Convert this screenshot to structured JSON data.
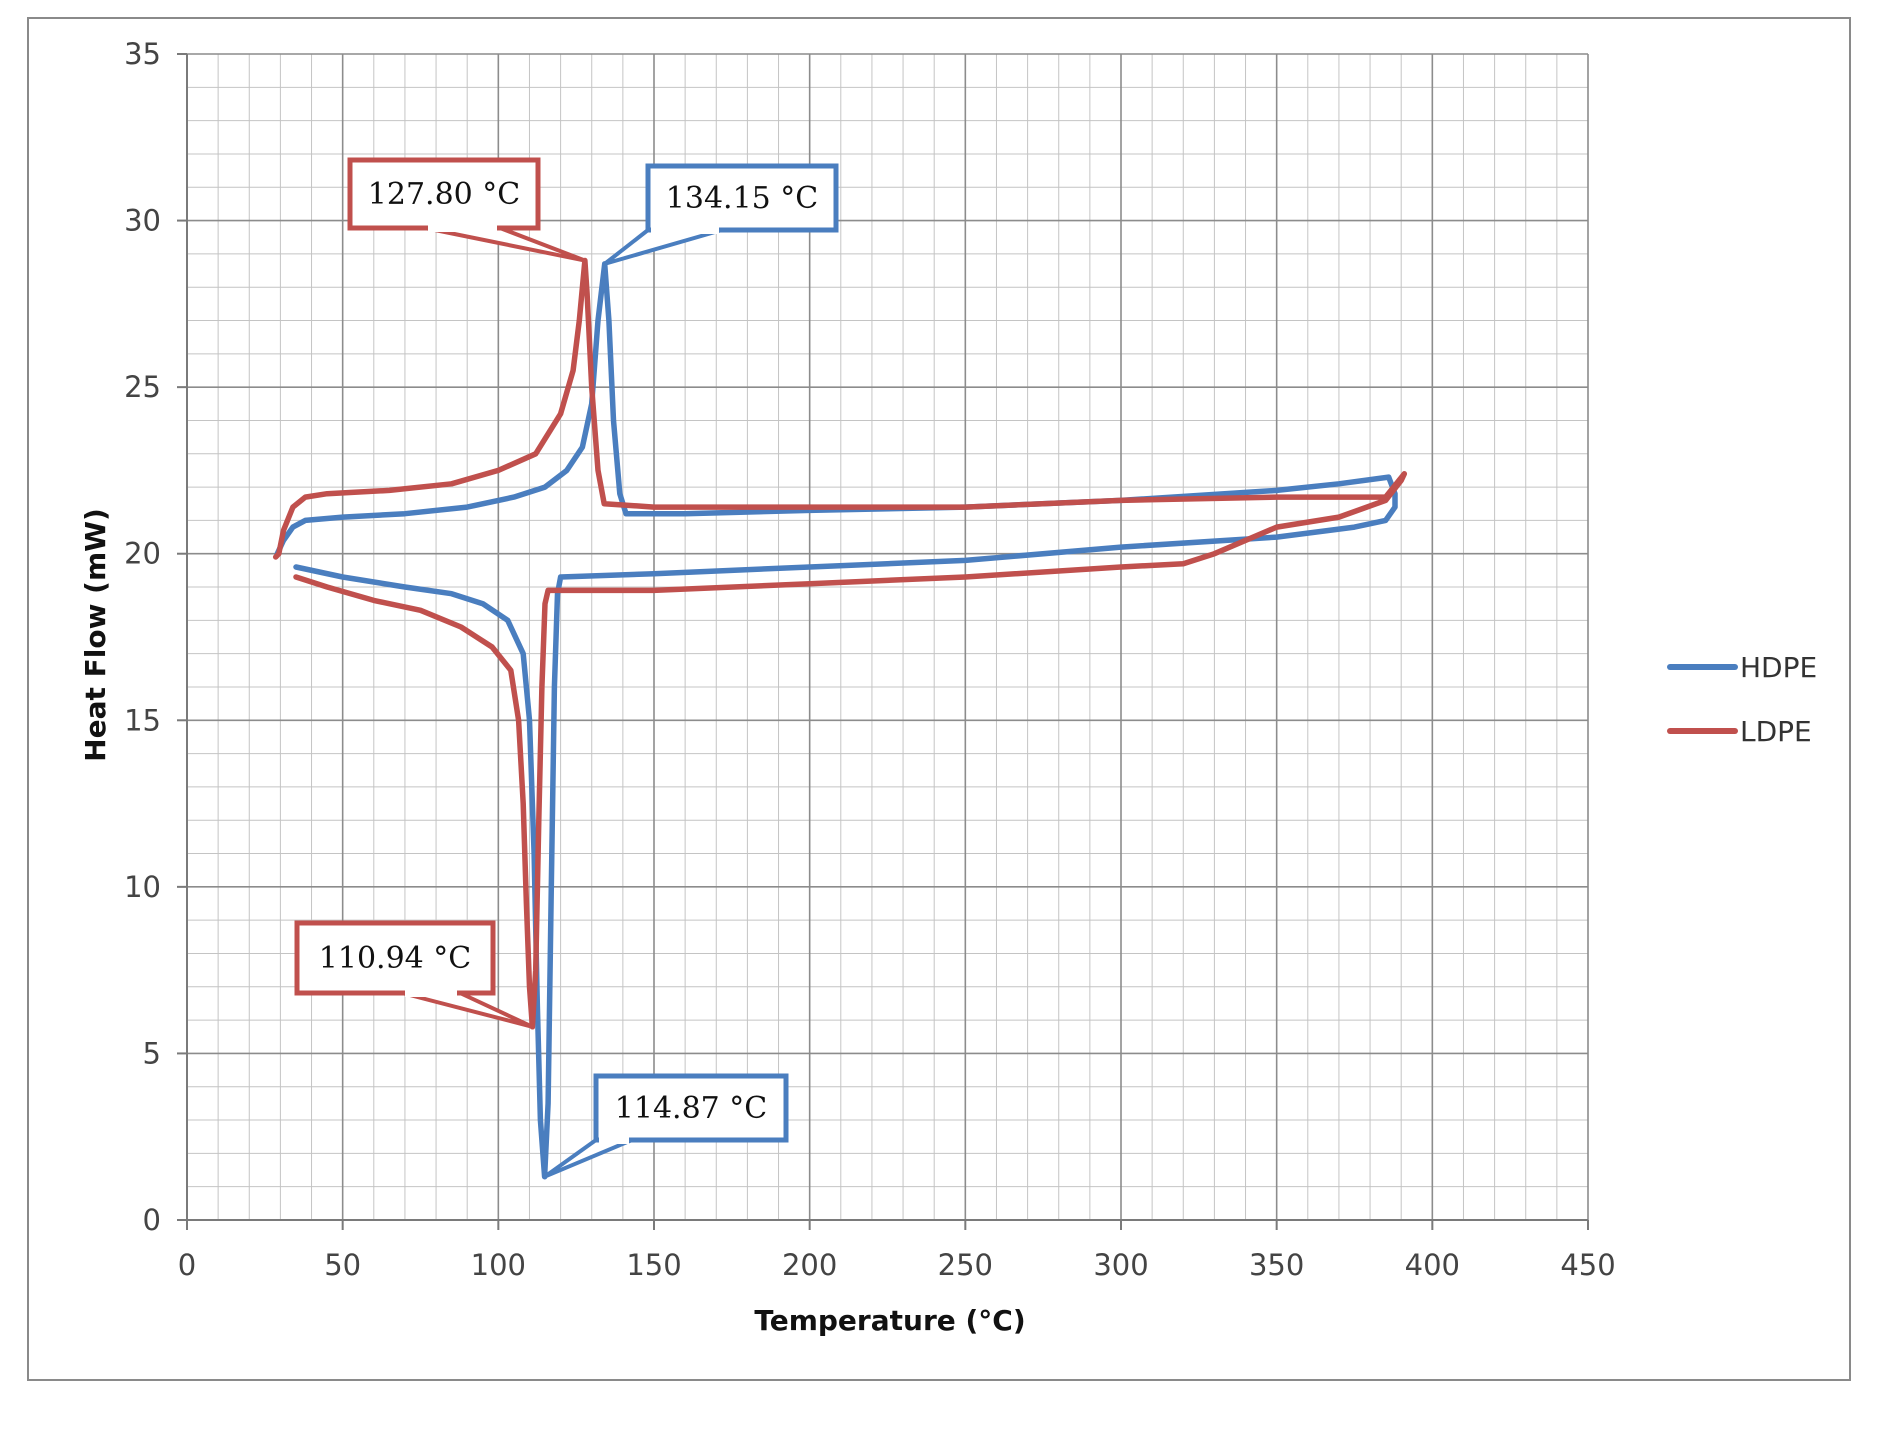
{
  "chart_data": {
    "type": "line",
    "xlabel": "Temperature (°C)",
    "ylabel": "Heat Flow (mW)",
    "xlim": [
      0,
      450
    ],
    "ylim": [
      0,
      35
    ],
    "xticks": [
      0,
      50,
      100,
      150,
      200,
      250,
      300,
      350,
      400,
      450
    ],
    "yticks": [
      0,
      5,
      10,
      15,
      20,
      25,
      30,
      35
    ],
    "grid": true,
    "legend_position": "right",
    "series": [
      {
        "name": "HDPE",
        "color": "#4a7ebf",
        "points": [
          [
            35,
            19.6
          ],
          [
            50,
            19.3
          ],
          [
            70,
            19.0
          ],
          [
            85,
            18.8
          ],
          [
            95,
            18.5
          ],
          [
            103,
            18.0
          ],
          [
            108,
            17.0
          ],
          [
            110,
            15.0
          ],
          [
            111.5,
            11.0
          ],
          [
            112.5,
            6.5
          ],
          [
            113.5,
            3.0
          ],
          [
            114.87,
            1.3
          ],
          [
            116,
            3.5
          ],
          [
            117,
            10.0
          ],
          [
            118,
            16.0
          ],
          [
            119,
            18.8
          ],
          [
            120,
            19.3
          ],
          [
            150,
            19.4
          ],
          [
            200,
            19.6
          ],
          [
            250,
            19.8
          ],
          [
            300,
            20.2
          ],
          [
            350,
            20.5
          ],
          [
            375,
            20.8
          ],
          [
            385,
            21.0
          ],
          [
            388,
            21.4
          ],
          [
            388,
            21.8
          ],
          [
            386,
            22.3
          ],
          [
            370,
            22.1
          ],
          [
            350,
            21.9
          ],
          [
            300,
            21.6
          ],
          [
            250,
            21.4
          ],
          [
            200,
            21.3
          ],
          [
            160,
            21.2
          ],
          [
            141,
            21.2
          ],
          [
            139,
            21.8
          ],
          [
            137,
            24.0
          ],
          [
            135.5,
            27.0
          ],
          [
            134.15,
            28.7
          ],
          [
            132,
            27.0
          ],
          [
            130,
            24.5
          ],
          [
            127,
            23.2
          ],
          [
            122,
            22.5
          ],
          [
            115,
            22.0
          ],
          [
            105,
            21.7
          ],
          [
            90,
            21.4
          ],
          [
            70,
            21.2
          ],
          [
            50,
            21.1
          ],
          [
            38,
            21.0
          ],
          [
            34,
            20.8
          ],
          [
            31,
            20.4
          ],
          [
            29,
            20.0
          ]
        ]
      },
      {
        "name": "LDPE",
        "color": "#c0504d",
        "points": [
          [
            35,
            19.3
          ],
          [
            45,
            19.0
          ],
          [
            60,
            18.6
          ],
          [
            75,
            18.3
          ],
          [
            88,
            17.8
          ],
          [
            98,
            17.2
          ],
          [
            104,
            16.5
          ],
          [
            106.5,
            15.0
          ],
          [
            108,
            12.5
          ],
          [
            109,
            9.5
          ],
          [
            110,
            7.0
          ],
          [
            110.94,
            5.8
          ],
          [
            112,
            7.5
          ],
          [
            113,
            12.0
          ],
          [
            114,
            16.0
          ],
          [
            115,
            18.5
          ],
          [
            116,
            18.9
          ],
          [
            150,
            18.9
          ],
          [
            200,
            19.1
          ],
          [
            250,
            19.3
          ],
          [
            300,
            19.6
          ],
          [
            320,
            19.7
          ],
          [
            330,
            20.0
          ],
          [
            350,
            20.8
          ],
          [
            370,
            21.1
          ],
          [
            385,
            21.6
          ],
          [
            390,
            22.2
          ],
          [
            391,
            22.4
          ],
          [
            385,
            21.7
          ],
          [
            350,
            21.7
          ],
          [
            300,
            21.6
          ],
          [
            250,
            21.4
          ],
          [
            200,
            21.4
          ],
          [
            150,
            21.4
          ],
          [
            134,
            21.5
          ],
          [
            132,
            22.5
          ],
          [
            130,
            25.0
          ],
          [
            128.5,
            27.8
          ],
          [
            127.8,
            28.8
          ],
          [
            126,
            27.0
          ],
          [
            124,
            25.5
          ],
          [
            120,
            24.2
          ],
          [
            112,
            23.0
          ],
          [
            100,
            22.5
          ],
          [
            85,
            22.1
          ],
          [
            65,
            21.9
          ],
          [
            45,
            21.8
          ],
          [
            38,
            21.7
          ],
          [
            34,
            21.4
          ],
          [
            31,
            20.7
          ],
          [
            29.5,
            20.0
          ],
          [
            28.5,
            19.9
          ]
        ]
      }
    ],
    "annotations": [
      {
        "text": "127.80  °C",
        "series": "LDPE",
        "x": 127.8,
        "y": 28.8,
        "color": "#c0504d"
      },
      {
        "text": "134.15  °C",
        "series": "HDPE",
        "x": 134.15,
        "y": 28.7,
        "color": "#4a7ebf"
      },
      {
        "text": "110.94  °C",
        "series": "LDPE",
        "x": 110.94,
        "y": 5.8,
        "color": "#c0504d"
      },
      {
        "text": "114.87  °C",
        "series": "HDPE",
        "x": 114.87,
        "y": 1.3,
        "color": "#4a7ebf"
      }
    ]
  }
}
